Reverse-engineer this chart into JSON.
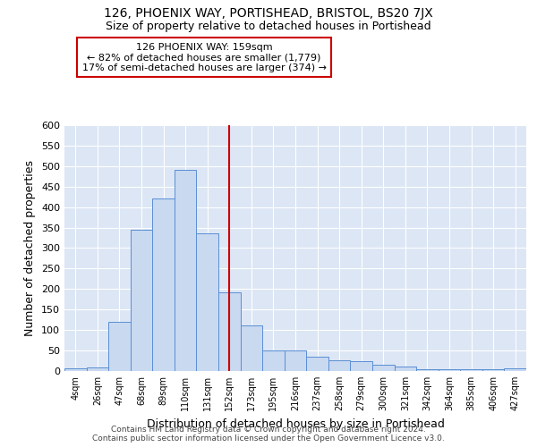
{
  "title_line1": "126, PHOENIX WAY, PORTISHEAD, BRISTOL, BS20 7JX",
  "title_line2": "Size of property relative to detached houses in Portishead",
  "xlabel": "Distribution of detached houses by size in Portishead",
  "ylabel": "Number of detached properties",
  "footer_line1": "Contains HM Land Registry data © Crown copyright and database right 2024.",
  "footer_line2": "Contains public sector information licensed under the Open Government Licence v3.0.",
  "bin_labels": [
    "4sqm",
    "26sqm",
    "47sqm",
    "68sqm",
    "89sqm",
    "110sqm",
    "131sqm",
    "152sqm",
    "173sqm",
    "195sqm",
    "216sqm",
    "237sqm",
    "258sqm",
    "279sqm",
    "300sqm",
    "321sqm",
    "342sqm",
    "364sqm",
    "385sqm",
    "406sqm",
    "427sqm"
  ],
  "bar_heights": [
    7,
    8,
    120,
    345,
    420,
    490,
    337,
    192,
    112,
    50,
    50,
    35,
    27,
    25,
    15,
    10,
    4,
    5,
    5,
    5,
    6
  ],
  "bar_color": "#c8d9f0",
  "bar_edge_color": "#5b8fd4",
  "marker_bin_index": 7,
  "marker_line_color": "#cc0000",
  "annotation_line1": "126 PHOENIX WAY: 159sqm",
  "annotation_line2": "← 82% of detached houses are smaller (1,779)",
  "annotation_line3": "17% of semi-detached houses are larger (374) →",
  "annotation_box_color": "#ffffff",
  "annotation_box_edge_color": "#cc0000",
  "ylim": [
    0,
    600
  ],
  "yticks": [
    0,
    50,
    100,
    150,
    200,
    250,
    300,
    350,
    400,
    450,
    500,
    550,
    600
  ],
  "plot_bg_color": "#dce6f5",
  "grid_color": "#ffffff"
}
